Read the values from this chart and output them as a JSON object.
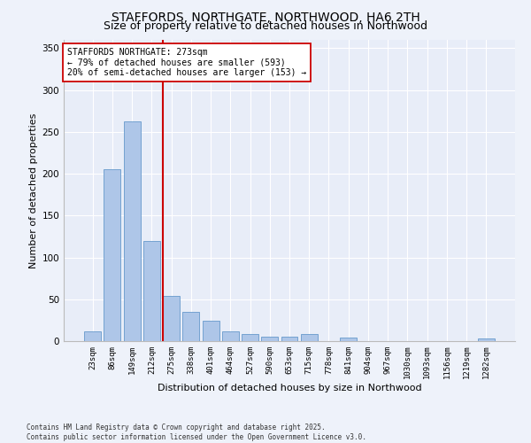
{
  "title": "STAFFORDS, NORTHGATE, NORTHWOOD, HA6 2TH",
  "subtitle": "Size of property relative to detached houses in Northwood",
  "xlabel": "Distribution of detached houses by size in Northwood",
  "ylabel": "Number of detached properties",
  "categories": [
    "23sqm",
    "86sqm",
    "149sqm",
    "212sqm",
    "275sqm",
    "338sqm",
    "401sqm",
    "464sqm",
    "527sqm",
    "590sqm",
    "653sqm",
    "715sqm",
    "778sqm",
    "841sqm",
    "904sqm",
    "967sqm",
    "1030sqm",
    "1093sqm",
    "1156sqm",
    "1219sqm",
    "1282sqm"
  ],
  "values": [
    12,
    205,
    263,
    120,
    54,
    35,
    24,
    12,
    8,
    5,
    5,
    8,
    0,
    4,
    0,
    0,
    0,
    0,
    0,
    0,
    3
  ],
  "bar_color": "#aec6e8",
  "bar_edge_color": "#6699cc",
  "vline_color": "#cc0000",
  "annotation_text": "STAFFORDS NORTHGATE: 273sqm\n← 79% of detached houses are smaller (593)\n20% of semi-detached houses are larger (153) →",
  "annotation_box_color": "#ffffff",
  "annotation_box_edge": "#cc0000",
  "ylim": [
    0,
    360
  ],
  "yticks": [
    0,
    50,
    100,
    150,
    200,
    250,
    300,
    350
  ],
  "bg_color": "#e8edf8",
  "fig_bg_color": "#eef2fa",
  "footer_line1": "Contains HM Land Registry data © Crown copyright and database right 2025.",
  "footer_line2": "Contains public sector information licensed under the Open Government Licence v3.0.",
  "title_fontsize": 10,
  "subtitle_fontsize": 9,
  "tick_fontsize": 6.5,
  "label_fontsize": 8,
  "annotation_fontsize": 7,
  "footer_fontsize": 5.5
}
